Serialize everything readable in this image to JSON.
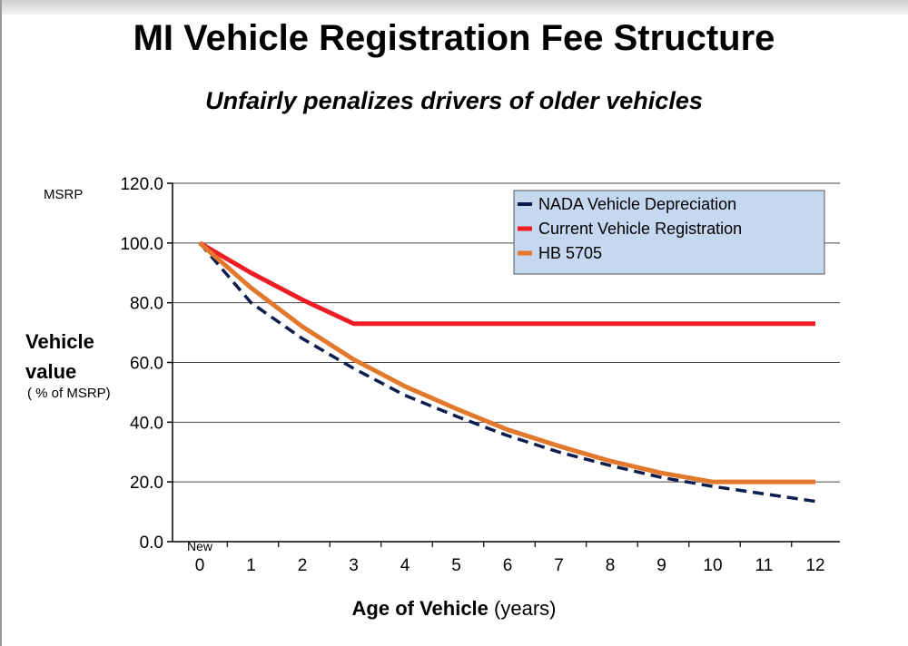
{
  "chart_data": {
    "type": "line",
    "title": "MI Vehicle Registration Fee Structure",
    "subtitle": "Unfairly penalizes drivers of older vehicles",
    "ylabel": "Vehicle value",
    "ylabel_sub": "( % of MSRP)",
    "ylabel_top": "MSRP",
    "xlabel_bold": "Age of Vehicle",
    "xlabel_rest": "(years)",
    "x_note": "New",
    "x": [
      0,
      1,
      2,
      3,
      4,
      5,
      6,
      7,
      8,
      9,
      10,
      11,
      12
    ],
    "ylim": [
      0,
      120
    ],
    "yticks": [
      "0.0",
      "20.0",
      "40.0",
      "60.0",
      "80.0",
      "100.0",
      "120.0"
    ],
    "grid": true,
    "legend_position": "top-right",
    "series": [
      {
        "name": "NADA Vehicle Depreciation",
        "color": "#0d1d4d",
        "style": "dashed",
        "values": [
          100,
          80,
          68,
          58,
          49,
          42,
          35.5,
          30,
          25.5,
          21.5,
          18.5,
          16,
          13.5
        ]
      },
      {
        "name": "Current Vehicle Registration",
        "color": "#ee1c25",
        "style": "solid",
        "values": [
          100,
          90,
          81,
          73,
          73,
          73,
          73,
          73,
          73,
          73,
          73,
          73,
          73
        ]
      },
      {
        "name": "HB 5705",
        "color": "#e2782c",
        "style": "solid",
        "values": [
          100,
          85,
          72,
          61,
          52,
          44.5,
          37.5,
          32,
          27,
          23,
          20,
          20,
          20
        ]
      }
    ]
  }
}
